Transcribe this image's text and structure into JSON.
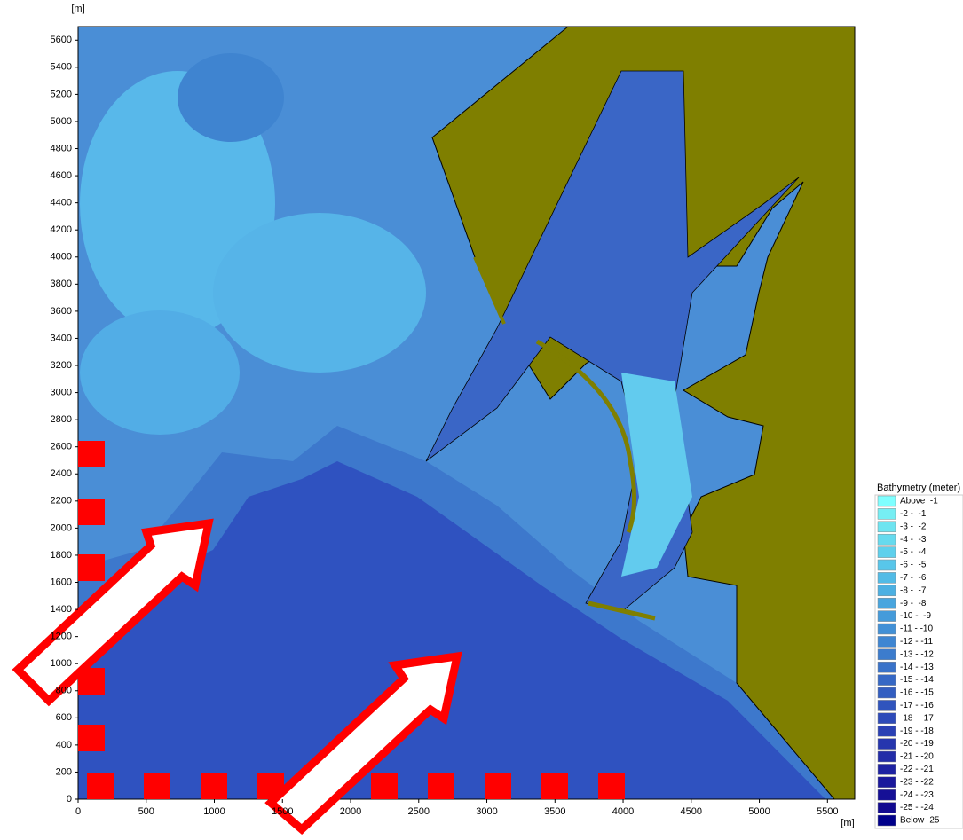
{
  "chart_data": {
    "type": "map",
    "x_label": "[m]",
    "y_label": "[m]",
    "xlim": [
      0,
      5700
    ],
    "ylim": [
      0,
      5700
    ],
    "xticks": [
      0,
      500,
      1000,
      1500,
      2000,
      2500,
      3000,
      3500,
      4000,
      4500,
      5000,
      5500
    ],
    "yticks": [
      0,
      200,
      400,
      600,
      800,
      1000,
      1200,
      1400,
      1600,
      1800,
      2000,
      2200,
      2400,
      2600,
      2800,
      3000,
      3200,
      3400,
      3600,
      3800,
      4000,
      4200,
      4400,
      4600,
      4800,
      5000,
      5200,
      5400,
      5600
    ],
    "legend": {
      "title": "Bathymetry (meter)",
      "entries": [
        {
          "label": "Above  -1",
          "color": "#7fffff"
        },
        {
          "label": "-2 -  -1",
          "color": "#76eef3"
        },
        {
          "label": "-3 -  -2",
          "color": "#6ee4f0"
        },
        {
          "label": "-4 -  -3",
          "color": "#66daee"
        },
        {
          "label": "-5 -  -4",
          "color": "#5ed0ec"
        },
        {
          "label": "-6 -  -5",
          "color": "#58c6ea"
        },
        {
          "label": "-7 -  -6",
          "color": "#52bbe6"
        },
        {
          "label": "-8 -  -7",
          "color": "#4cb0e2"
        },
        {
          "label": "-9 -  -8",
          "color": "#48a5de"
        },
        {
          "label": "-10 -  -9",
          "color": "#459bda"
        },
        {
          "label": "-11 - -10",
          "color": "#4290d6"
        },
        {
          "label": "-12 - -11",
          "color": "#3f86d2"
        },
        {
          "label": "-13 - -12",
          "color": "#3c7ccd"
        },
        {
          "label": "-14 - -13",
          "color": "#3972c9"
        },
        {
          "label": "-15 - -14",
          "color": "#3668c5"
        },
        {
          "label": "-16 - -15",
          "color": "#335ec1"
        },
        {
          "label": "-17 - -16",
          "color": "#3054bd"
        },
        {
          "label": "-18 - -17",
          "color": "#2d4ab9"
        },
        {
          "label": "-19 - -18",
          "color": "#2a40b4"
        },
        {
          "label": "-20 - -19",
          "color": "#2636ae"
        },
        {
          "label": "-21 - -20",
          "color": "#222ca8"
        },
        {
          "label": "-22 - -21",
          "color": "#1e22a2"
        },
        {
          "label": "-23 - -22",
          "color": "#1a189c"
        },
        {
          "label": "-24 - -23",
          "color": "#161096"
        },
        {
          "label": "-25 - -24",
          "color": "#120a90"
        },
        {
          "label": "Below -25",
          "color": "#00008b"
        }
      ]
    }
  }
}
